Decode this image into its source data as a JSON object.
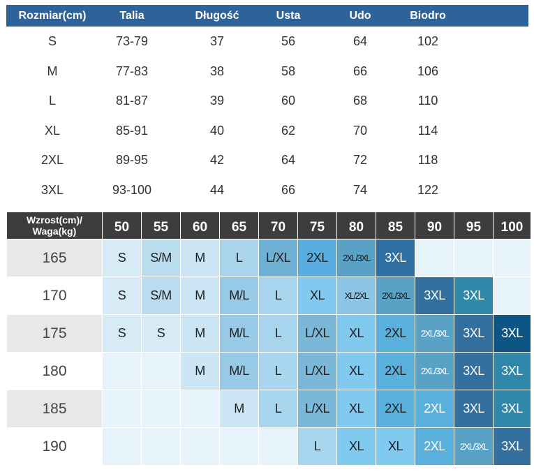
{
  "size_table": {
    "headers": [
      "Rozmiar(cm)",
      "Talia",
      "Długość",
      "Usta",
      "Udo",
      "Biodro"
    ],
    "rows": [
      [
        "S",
        "73-79",
        "37",
        "56",
        "64",
        "102"
      ],
      [
        "M",
        "77-83",
        "38",
        "58",
        "66",
        "106"
      ],
      [
        "L",
        "81-87",
        "39",
        "60",
        "68",
        "110"
      ],
      [
        "XL",
        "85-91",
        "40",
        "62",
        "70",
        "114"
      ],
      [
        "2XL",
        "89-95",
        "42",
        "64",
        "72",
        "118"
      ],
      [
        "3XL",
        "93-100",
        "44",
        "66",
        "74",
        "122"
      ]
    ],
    "header_color": "#2e6399"
  },
  "fit_table": {
    "corner_label_line1": "Wzrost(cm)/",
    "corner_label_line2": "Waga(kg)",
    "weights": [
      "50",
      "55",
      "60",
      "65",
      "70",
      "75",
      "80",
      "85",
      "90",
      "95",
      "100"
    ],
    "rows": [
      {
        "height": "165",
        "shade": "#e8e8e8",
        "cells": [
          {
            "t": "S",
            "c": "#d6ebf6"
          },
          {
            "t": "S/M",
            "c": "#b9dcee"
          },
          {
            "t": "M",
            "c": "#cce6f5"
          },
          {
            "t": "L",
            "c": "#a9d4ec"
          },
          {
            "t": "L/XL",
            "c": "#6eb0d4"
          },
          {
            "t": "2XL",
            "c": "#58aee0"
          },
          {
            "t": "2XL/3XL",
            "c": "#5aa1c6"
          },
          {
            "t": "3XL",
            "c": "#2f6fa1",
            "d": true
          },
          {
            "t": "",
            "c": "#e6f3fb"
          },
          {
            "t": "",
            "c": "#e6f3fb"
          },
          {
            "t": "",
            "c": "#e6f3fb"
          }
        ]
      },
      {
        "height": "170",
        "shade": "#ffffff",
        "cells": [
          {
            "t": "S",
            "c": "#d6ebf6"
          },
          {
            "t": "S/M",
            "c": "#b9dcee"
          },
          {
            "t": "M",
            "c": "#cce6f5"
          },
          {
            "t": "M/L",
            "c": "#96cae6"
          },
          {
            "t": "L",
            "c": "#a8d6ef"
          },
          {
            "t": "XL",
            "c": "#80c9ef"
          },
          {
            "t": "XL/2XL",
            "c": "#8cc5e4"
          },
          {
            "t": "2XL/3XL",
            "c": "#5aa1c6"
          },
          {
            "t": "3XL",
            "c": "#33709f",
            "d": true
          },
          {
            "t": "3XL",
            "c": "#2f8aaa",
            "d": true
          },
          {
            "t": "",
            "c": "#e6f3fb"
          }
        ]
      },
      {
        "height": "175",
        "shade": "#e8e8e8",
        "cells": [
          {
            "t": "S",
            "c": "#d6ebf6"
          },
          {
            "t": "S",
            "c": "#d6ebf6"
          },
          {
            "t": "M",
            "c": "#cce6f5"
          },
          {
            "t": "M/L",
            "c": "#96cae6"
          },
          {
            "t": "L",
            "c": "#a8d6ef"
          },
          {
            "t": "L/XL",
            "c": "#7bb7d8"
          },
          {
            "t": "XL",
            "c": "#80c9ef"
          },
          {
            "t": "2XL",
            "c": "#5ab0dc"
          },
          {
            "t": "2XL/3XL",
            "c": "#5aa1c6",
            "d": true
          },
          {
            "t": "3XL",
            "c": "#33709f",
            "d": true
          },
          {
            "t": "3XL",
            "c": "#0c5585",
            "d": true
          }
        ]
      },
      {
        "height": "180",
        "shade": "#ffffff",
        "cells": [
          {
            "t": "",
            "c": "#e6f3fb"
          },
          {
            "t": "",
            "c": "#e6f3fb"
          },
          {
            "t": "M",
            "c": "#cce6f5"
          },
          {
            "t": "M/L",
            "c": "#96cae6"
          },
          {
            "t": "L",
            "c": "#a8d6ef"
          },
          {
            "t": "L/XL",
            "c": "#7bb7d8"
          },
          {
            "t": "XL",
            "c": "#80c9ef"
          },
          {
            "t": "2XL",
            "c": "#5ab0dc"
          },
          {
            "t": "2XL/3XL",
            "c": "#5aa1c6",
            "d": true
          },
          {
            "t": "3XL",
            "c": "#33709f",
            "d": true
          },
          {
            "t": "3XL",
            "c": "#2f88aa",
            "d": true
          }
        ]
      },
      {
        "height": "185",
        "shade": "#e8e8e8",
        "cells": [
          {
            "t": "",
            "c": "#e6f3fb"
          },
          {
            "t": "",
            "c": "#e6f3fb"
          },
          {
            "t": "",
            "c": "#e6f3fb"
          },
          {
            "t": "M",
            "c": "#cce6f5"
          },
          {
            "t": "L",
            "c": "#a8d6ef"
          },
          {
            "t": "L/XL",
            "c": "#7bb7d8"
          },
          {
            "t": "XL",
            "c": "#80c9ef"
          },
          {
            "t": "2XL",
            "c": "#5ab0dc"
          },
          {
            "t": "2XL",
            "c": "#5ab0dc",
            "d": true
          },
          {
            "t": "3XL",
            "c": "#33709f",
            "d": true
          },
          {
            "t": "3XL",
            "c": "#2f88aa",
            "d": true
          }
        ]
      },
      {
        "height": "190",
        "shade": "#ffffff",
        "cells": [
          {
            "t": "",
            "c": "#e6f3fb"
          },
          {
            "t": "",
            "c": "#e6f3fb"
          },
          {
            "t": "",
            "c": "#e6f3fb"
          },
          {
            "t": "",
            "c": "#e6f3fb"
          },
          {
            "t": "",
            "c": "#e6f3fb"
          },
          {
            "t": "L",
            "c": "#a8d6ef"
          },
          {
            "t": "XL",
            "c": "#80c9ef"
          },
          {
            "t": "XL",
            "c": "#80c9ef"
          },
          {
            "t": "2XL",
            "c": "#5ab0dc",
            "d": true
          },
          {
            "t": "2XL/3XL",
            "c": "#5aa1c6",
            "d": true
          },
          {
            "t": "3XL",
            "c": "#33709f",
            "d": true
          }
        ]
      }
    ]
  }
}
